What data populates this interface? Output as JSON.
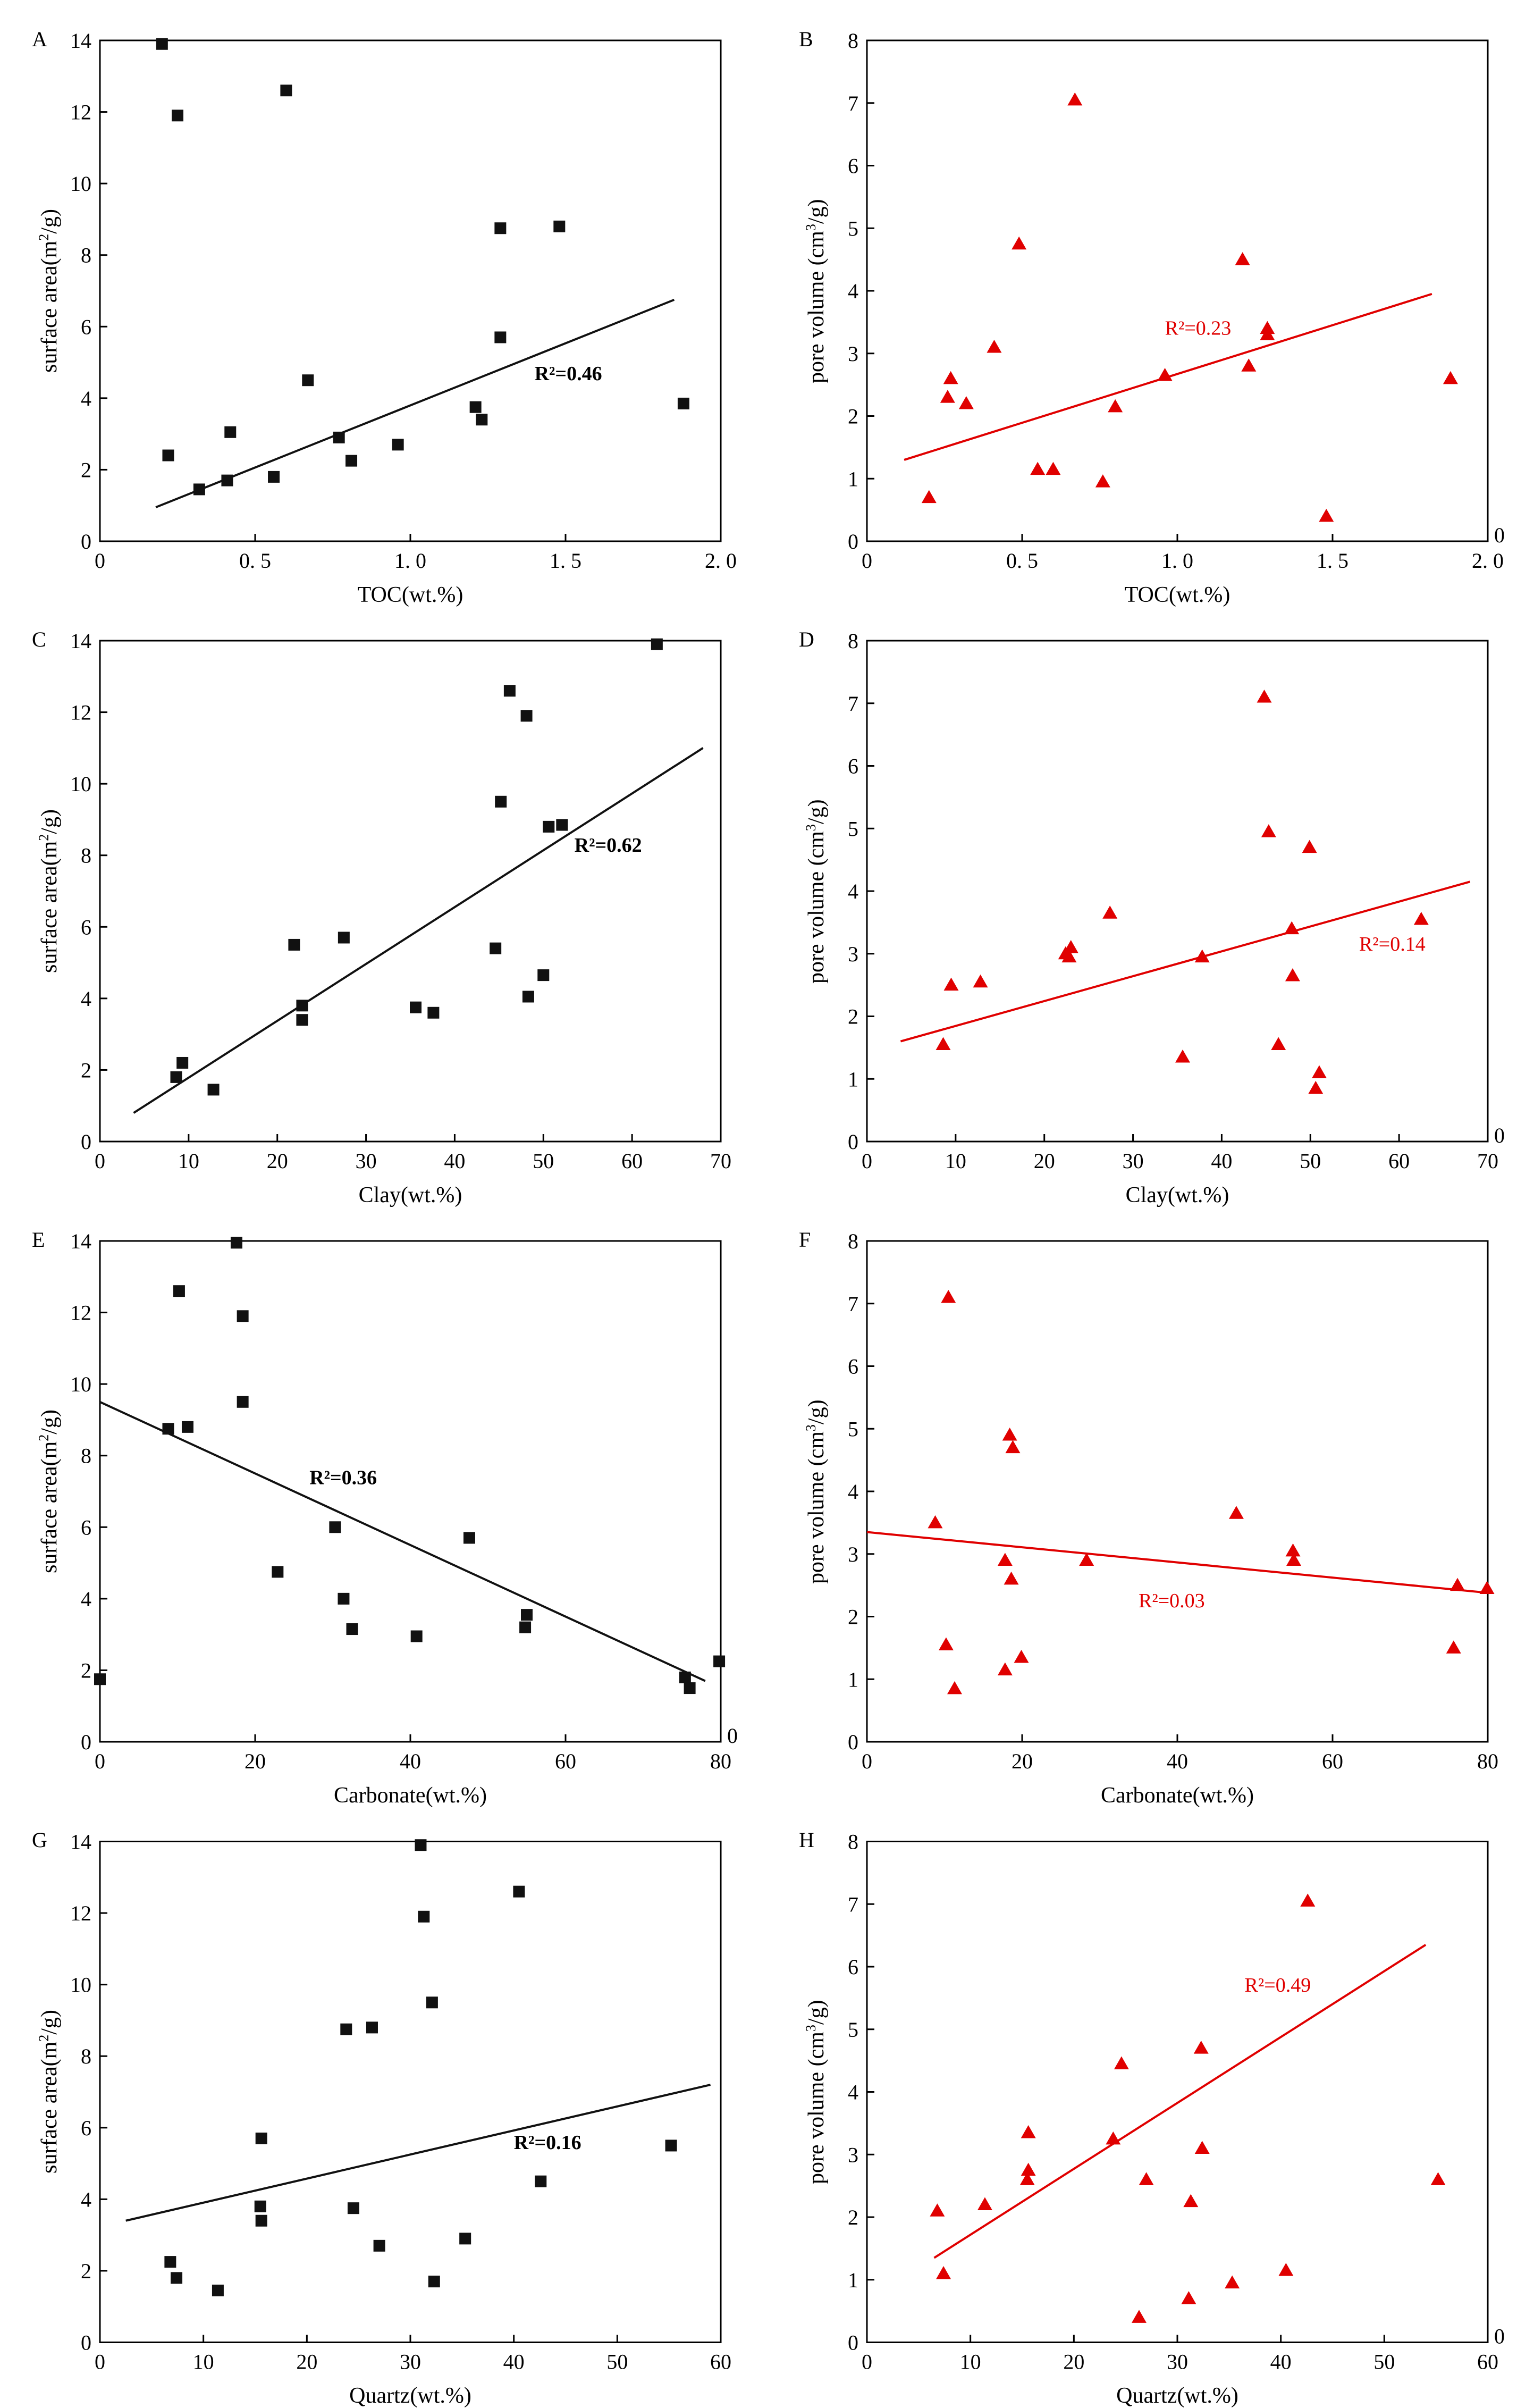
{
  "figure": {
    "colors": {
      "black_series": "#111111",
      "red_series": "#e00000",
      "axis": "#000000"
    }
  },
  "chart_data": [
    {
      "id": "A",
      "letter": "A",
      "type": "scatter",
      "marker": "square",
      "color": "#111111",
      "xlabel": "TOC(wt.%)",
      "ylabel_main": "surface area(m",
      "ylabel_sup": "2",
      "ylabel_tail": "/g)",
      "xlim": [
        0,
        2.0
      ],
      "ylim": [
        0,
        14
      ],
      "xticks": [
        0,
        0.5,
        1.0,
        1.5,
        2.0
      ],
      "xtick_labels": [
        "0",
        "0. 5",
        "1. 0",
        "1. 5",
        "2. 0"
      ],
      "yticks": [
        0,
        2,
        4,
        6,
        8,
        10,
        12,
        14
      ],
      "ytick_labels": [
        "0",
        "2",
        "4",
        "6",
        "8",
        "10",
        "12",
        "14"
      ],
      "right_zero": "",
      "x": [
        0.2,
        0.25,
        0.6,
        0.22,
        0.32,
        0.41,
        0.42,
        0.56,
        0.67,
        0.77,
        0.81,
        0.96,
        1.21,
        1.23,
        1.29,
        1.29,
        1.48,
        1.88
      ],
      "y": [
        13.9,
        11.9,
        12.6,
        2.4,
        1.45,
        1.7,
        3.05,
        1.8,
        4.5,
        2.9,
        2.25,
        2.7,
        3.75,
        3.4,
        8.75,
        5.7,
        8.8,
        3.85
      ],
      "fit": {
        "x1": 0.18,
        "y1": 0.95,
        "x2": 1.85,
        "y2": 6.75
      },
      "r2": "R²=0.46",
      "r2_x": 1.4,
      "r2_y": 4.5,
      "r2_bold": true
    },
    {
      "id": "B",
      "letter": "B",
      "type": "scatter",
      "marker": "triangle",
      "color": "#e00000",
      "xlabel": "TOC(wt.%)",
      "ylabel_main": "pore volume (cm",
      "ylabel_sup": "3",
      "ylabel_tail": "/g)",
      "xlim": [
        0,
        2.0
      ],
      "ylim": [
        0,
        8
      ],
      "xticks": [
        0,
        0.5,
        1.0,
        1.5,
        2.0
      ],
      "xtick_labels": [
        "0",
        "0. 5",
        "1. 0",
        "1. 5",
        "2. 0"
      ],
      "yticks": [
        0,
        1,
        2,
        3,
        4,
        5,
        6,
        7,
        8
      ],
      "ytick_labels": [
        "0",
        "1",
        "2",
        "3",
        "4",
        "5",
        "6",
        "7",
        "8"
      ],
      "right_zero": "0",
      "x": [
        0.2,
        0.27,
        0.26,
        0.32,
        0.41,
        0.49,
        0.55,
        0.6,
        0.67,
        0.76,
        0.8,
        0.96,
        1.21,
        1.23,
        1.29,
        1.29,
        1.48,
        1.88
      ],
      "y": [
        0.7,
        2.6,
        2.3,
        2.2,
        3.1,
        4.75,
        1.15,
        1.15,
        7.05,
        0.95,
        2.15,
        2.65,
        4.5,
        2.8,
        3.3,
        3.4,
        0.4,
        2.6
      ],
      "fit": {
        "x1": 0.12,
        "y1": 1.3,
        "x2": 1.82,
        "y2": 3.95
      },
      "r2": "R²=0.23",
      "r2_x": 0.96,
      "r2_y": 3.3,
      "r2_bold": false
    },
    {
      "id": "C",
      "letter": "C",
      "type": "scatter",
      "marker": "square",
      "color": "#111111",
      "xlabel": "Clay(wt.%)",
      "ylabel_main": "surface area(m",
      "ylabel_sup": "2",
      "ylabel_tail": "/g)",
      "xlim": [
        0,
        70
      ],
      "ylim": [
        0,
        14
      ],
      "xticks": [
        0,
        10,
        20,
        30,
        40,
        50,
        60,
        70
      ],
      "xtick_labels": [
        "0",
        "10",
        "20",
        "30",
        "40",
        "50",
        "60",
        "70"
      ],
      "yticks": [
        0,
        2,
        4,
        6,
        8,
        10,
        12,
        14
      ],
      "ytick_labels": [
        "0",
        "2",
        "4",
        "6",
        "8",
        "10",
        "12",
        "14"
      ],
      "right_zero": "",
      "x": [
        62.8,
        46.2,
        48.1,
        45.2,
        50.6,
        52.1,
        21.9,
        27.5,
        22.8,
        22.8,
        35.6,
        37.6,
        44.6,
        50.0,
        48.3,
        9.3,
        8.6,
        12.8
      ],
      "y": [
        13.9,
        12.6,
        11.9,
        9.5,
        8.8,
        8.85,
        5.5,
        5.7,
        3.8,
        3.4,
        3.75,
        3.6,
        5.4,
        4.65,
        4.05,
        2.2,
        1.8,
        1.45
      ],
      "fit": {
        "x1": 3.8,
        "y1": 0.8,
        "x2": 68,
        "y2": 11.0
      },
      "r2": "R²=0.62",
      "r2_x": 53.5,
      "r2_y": 8.1,
      "r2_bold": true
    },
    {
      "id": "D",
      "letter": "D",
      "type": "scatter",
      "marker": "triangle",
      "color": "#e00000",
      "xlabel": "Clay(wt.%)",
      "ylabel_main": "pore volume (cm",
      "ylabel_sup": "3",
      "ylabel_tail": "/g)",
      "xlim": [
        0,
        70
      ],
      "ylim": [
        0,
        8
      ],
      "xticks": [
        0,
        10,
        20,
        30,
        40,
        50,
        60,
        70
      ],
      "xtick_labels": [
        "0",
        "10",
        "20",
        "30",
        "40",
        "50",
        "60",
        "70"
      ],
      "yticks": [
        0,
        1,
        2,
        3,
        4,
        5,
        6,
        7,
        8
      ],
      "ytick_labels": [
        "0",
        "1",
        "2",
        "3",
        "4",
        "5",
        "6",
        "7",
        "8"
      ],
      "right_zero": "0",
      "x": [
        44.8,
        45.3,
        49.9,
        27.4,
        62.5,
        22.8,
        22.4,
        23.0,
        37.8,
        47.9,
        48.0,
        35.6,
        46.4,
        51.0,
        50.6,
        8.6,
        9.5,
        12.8
      ],
      "y": [
        7.1,
        4.95,
        4.7,
        3.65,
        3.55,
        2.95,
        3.0,
        3.1,
        2.95,
        3.4,
        2.65,
        1.35,
        1.55,
        1.1,
        0.85,
        1.55,
        2.5,
        2.55
      ],
      "fit": {
        "x1": 3.8,
        "y1": 1.6,
        "x2": 68,
        "y2": 4.15
      },
      "r2": "R²=0.14",
      "r2_x": 55.5,
      "r2_y": 3.05,
      "r2_bold": false
    },
    {
      "id": "E",
      "letter": "E",
      "type": "scatter",
      "marker": "square",
      "color": "#111111",
      "xlabel": "Carbonate(wt.%)",
      "ylabel_main": "surface area(m",
      "ylabel_sup": "2",
      "ylabel_tail": "/g)",
      "xlim": [
        0,
        80
      ],
      "ylim": [
        0,
        14
      ],
      "xticks": [
        0,
        20,
        40,
        60,
        80
      ],
      "xtick_labels": [
        "0",
        "20",
        "40",
        "60",
        "80"
      ],
      "yticks": [
        0,
        2,
        4,
        6,
        8,
        10,
        12,
        14
      ],
      "ytick_labels": [
        "0",
        "2",
        "4",
        "6",
        "8",
        "10",
        "12",
        "14"
      ],
      "right_zero": "0",
      "x": [
        17.6,
        10.2,
        18.4,
        18.4,
        8.8,
        11.3,
        30.3,
        47.6,
        22.9,
        31.4,
        32.5,
        40.8,
        55.0,
        54.8,
        76.0,
        75.4,
        79.8,
        0.0
      ],
      "y": [
        13.95,
        12.6,
        11.9,
        9.5,
        8.75,
        8.8,
        6.0,
        5.7,
        4.75,
        4.0,
        3.15,
        2.95,
        3.55,
        3.2,
        1.5,
        1.8,
        2.25,
        1.75
      ],
      "fit": {
        "x1": 0,
        "y1": 9.5,
        "x2": 78,
        "y2": 1.7
      },
      "r2": "R²=0.36",
      "r2_x": 27,
      "r2_y": 7.2,
      "r2_bold": true
    },
    {
      "id": "F",
      "letter": "F",
      "type": "scatter",
      "marker": "triangle",
      "color": "#e00000",
      "xlabel": "Carbonate(wt.%)",
      "ylabel_main": "pore volume (cm",
      "ylabel_sup": "3",
      "ylabel_tail": "/g)",
      "xlim": [
        0,
        80
      ],
      "ylim": [
        0,
        8
      ],
      "xticks": [
        0,
        20,
        40,
        60,
        80
      ],
      "xtick_labels": [
        "0",
        "20",
        "40",
        "60",
        "80"
      ],
      "yticks": [
        0,
        1,
        2,
        3,
        4,
        5,
        6,
        7,
        8
      ],
      "ytick_labels": [
        "0",
        "1",
        "2",
        "3",
        "4",
        "5",
        "6",
        "7",
        "8"
      ],
      "right_zero": "",
      "x": [
        10.5,
        18.4,
        18.8,
        8.8,
        17.8,
        18.6,
        28.3,
        47.6,
        54.9,
        55.0,
        10.2,
        17.8,
        19.9,
        11.3,
        75.6,
        76.1,
        79.9
      ],
      "y": [
        7.1,
        4.9,
        4.7,
        3.5,
        2.9,
        2.6,
        2.9,
        3.65,
        3.05,
        2.9,
        1.55,
        1.15,
        1.35,
        0.85,
        1.5,
        2.5,
        2.45
      ],
      "fit": {
        "x1": 0,
        "y1": 3.35,
        "x2": 80,
        "y2": 2.38
      },
      "r2": "R²=0.03",
      "r2_x": 35,
      "r2_y": 2.15,
      "r2_bold": false
    },
    {
      "id": "G",
      "letter": "G",
      "type": "scatter",
      "marker": "square",
      "color": "#111111",
      "xlabel": "Quartz(wt.%)",
      "ylabel_main": "surface area(m",
      "ylabel_sup": "2",
      "ylabel_tail": "/g)",
      "xlim": [
        0,
        60
      ],
      "ylim": [
        0,
        14
      ],
      "xticks": [
        0,
        10,
        20,
        30,
        40,
        50,
        60
      ],
      "xtick_labels": [
        "0",
        "10",
        "20",
        "30",
        "40",
        "50",
        "60"
      ],
      "yticks": [
        0,
        2,
        4,
        6,
        8,
        10,
        12,
        14
      ],
      "ytick_labels": [
        "0",
        "2",
        "4",
        "6",
        "8",
        "10",
        "12",
        "14"
      ],
      "right_zero": "",
      "x": [
        31.0,
        40.5,
        31.3,
        32.1,
        23.8,
        26.3,
        15.6,
        55.2,
        42.6,
        15.5,
        15.6,
        24.5,
        6.8,
        7.4,
        11.4,
        27.0,
        35.3,
        32.3
      ],
      "y": [
        13.9,
        12.6,
        11.9,
        9.5,
        8.75,
        8.8,
        5.7,
        5.5,
        4.5,
        3.8,
        3.4,
        3.75,
        2.25,
        1.8,
        1.45,
        2.7,
        2.9,
        1.7
      ],
      "fit": {
        "x1": 2.5,
        "y1": 3.4,
        "x2": 59,
        "y2": 7.2
      },
      "r2": "R²=0.16",
      "r2_x": 40,
      "r2_y": 5.4,
      "r2_bold": true
    },
    {
      "id": "H",
      "letter": "H",
      "type": "scatter",
      "marker": "triangle",
      "color": "#e00000",
      "xlabel": "Quartz(wt.%)",
      "ylabel_main": "pore volume (cm",
      "ylabel_sup": "3",
      "ylabel_tail": "/g)",
      "xlim": [
        0,
        60
      ],
      "ylim": [
        0,
        8
      ],
      "xticks": [
        0,
        10,
        20,
        30,
        40,
        50,
        60
      ],
      "xtick_labels": [
        "0",
        "10",
        "20",
        "30",
        "40",
        "50",
        "60"
      ],
      "yticks": [
        0,
        1,
        2,
        3,
        4,
        5,
        6,
        7,
        8
      ],
      "ytick_labels": [
        "0",
        "1",
        "2",
        "3",
        "4",
        "5",
        "6",
        "7",
        "8"
      ],
      "right_zero": "0",
      "x": [
        42.6,
        32.3,
        24.6,
        15.6,
        15.6,
        32.4,
        23.8,
        15.5,
        27.0,
        31.3,
        11.4,
        6.8,
        55.2,
        7.4,
        26.3,
        31.1,
        35.3,
        40.5
      ],
      "y": [
        7.05,
        4.7,
        4.45,
        3.35,
        2.75,
        3.1,
        3.25,
        2.6,
        2.6,
        2.25,
        2.2,
        2.1,
        2.6,
        1.1,
        0.4,
        0.7,
        0.95,
        1.15
      ],
      "fit": {
        "x1": 6.5,
        "y1": 1.35,
        "x2": 54,
        "y2": 6.35
      },
      "r2": "R²=0.49",
      "r2_x": 36.5,
      "r2_y": 5.6,
      "r2_bold": false
    }
  ]
}
